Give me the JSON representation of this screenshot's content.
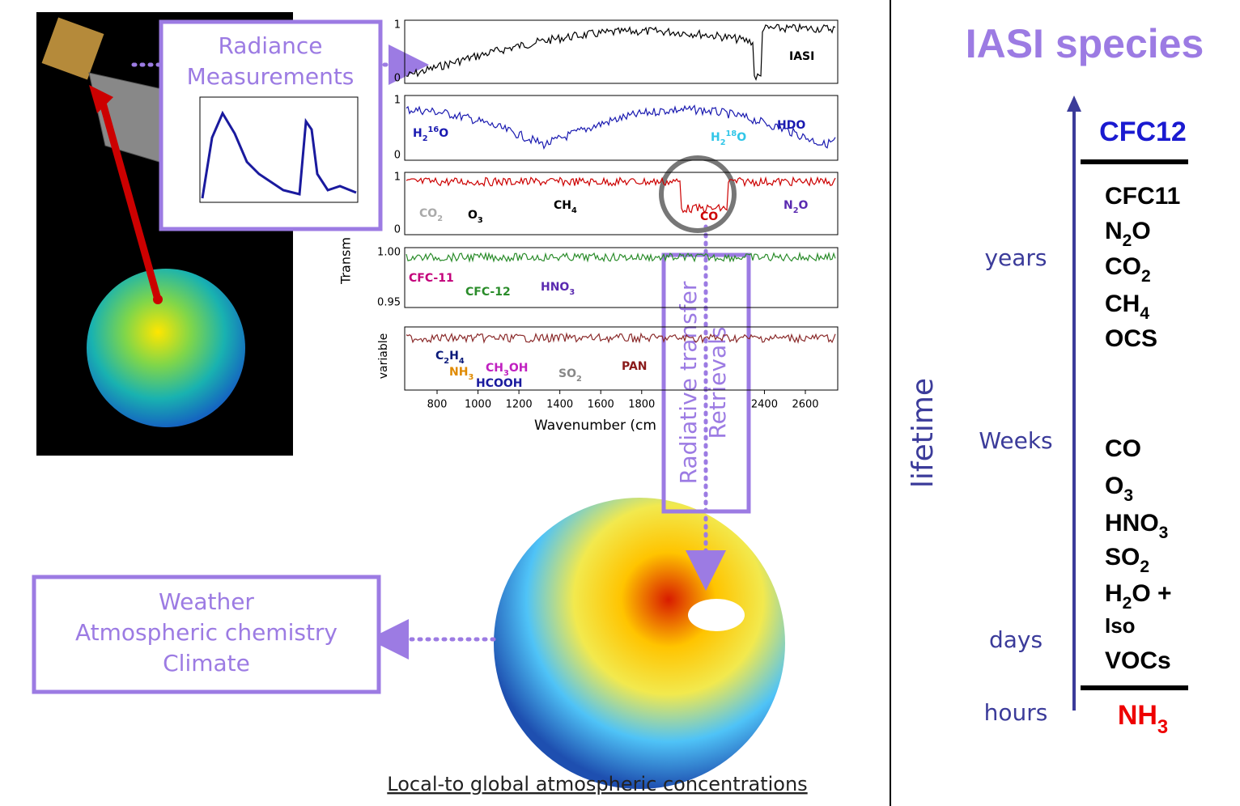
{
  "radiance_box": {
    "lines": [
      "Radiance",
      "Measurements"
    ]
  },
  "spectra": {
    "y_axis_label": "Transm",
    "variable_label": "variable",
    "x_axis_label": "Wavenumber (cm",
    "xticks": [
      800,
      1000,
      1200,
      1400,
      1600,
      1800,
      2400,
      2600
    ],
    "panels": [
      {
        "yticks": [
          "1",
          "0"
        ],
        "labels": [
          [
            {
              "text": "IASI"
            }
          ]
        ]
      },
      {
        "yticks": [
          "1",
          "0"
        ],
        "labels": [
          [
            {
              "text": "H"
            },
            {
              "sub": "2"
            },
            {
              "sup": "16"
            },
            {
              "text": "O"
            }
          ],
          [
            {
              "text": "H"
            },
            {
              "sub": "2"
            },
            {
              "sup": "18"
            },
            {
              "text": "O"
            }
          ],
          [
            {
              "text": "HDO"
            }
          ]
        ]
      },
      {
        "yticks": [
          "1",
          "0"
        ],
        "labels": [
          [
            {
              "text": "CO"
            },
            {
              "sub": "2"
            }
          ],
          [
            {
              "text": "O"
            },
            {
              "sub": "3"
            }
          ],
          [
            {
              "text": "CH"
            },
            {
              "sub": "4"
            }
          ],
          [
            {
              "text": "CO"
            }
          ],
          [
            {
              "text": "N"
            },
            {
              "sub": "2"
            },
            {
              "text": "O"
            }
          ]
        ]
      },
      {
        "yticks": [
          "1.00",
          "0.95"
        ],
        "labels": [
          [
            {
              "text": "CFC-11"
            }
          ],
          [
            {
              "text": "CFC-12"
            }
          ],
          [
            {
              "text": "HNO"
            },
            {
              "sub": "3"
            }
          ]
        ]
      },
      {
        "yticks": [],
        "labels": [
          [
            {
              "text": "C"
            },
            {
              "sub": "2"
            },
            {
              "text": "H"
            },
            {
              "sub": "4"
            }
          ],
          [
            {
              "text": "NH"
            },
            {
              "sub": "3"
            }
          ],
          [
            {
              "text": "CH"
            },
            {
              "sub": "3"
            },
            {
              "text": "OH"
            }
          ],
          [
            {
              "text": "HCOOH"
            }
          ],
          [
            {
              "text": "SO"
            },
            {
              "sub": "2"
            }
          ],
          [
            {
              "text": "PAN"
            }
          ]
        ]
      }
    ]
  },
  "retrieval_box": {
    "lines": [
      "Radiative transfer",
      "Retrievals"
    ]
  },
  "uses_box": {
    "lines": [
      "Weather",
      "Atmospheric chemistry",
      "Climate"
    ]
  },
  "footer": "Local-to global atmospheric concentrations",
  "species_panel": {
    "title": "IASI species",
    "axis_label": "lifetime",
    "timescales": [
      "years",
      "Weeks",
      "days",
      "hours"
    ],
    "top_species": [
      {
        "text": "CFC12"
      }
    ],
    "long_lived": [
      [
        {
          "text": "CFC11"
        }
      ],
      [
        {
          "text": "N"
        },
        {
          "sub": "2"
        },
        {
          "text": "O"
        }
      ],
      [
        {
          "text": "CO"
        },
        {
          "sub": "2"
        }
      ],
      [
        {
          "text": "CH"
        },
        {
          "sub": "4"
        }
      ],
      [
        {
          "text": "OCS"
        }
      ]
    ],
    "short_lived": [
      [
        {
          "text": "CO"
        }
      ],
      [
        {
          "text": "O"
        },
        {
          "sub": "3"
        }
      ],
      [
        {
          "text": "HNO"
        },
        {
          "sub": "3"
        }
      ],
      [
        {
          "text": "SO"
        },
        {
          "sub": "2"
        }
      ],
      [
        {
          "text": "H"
        },
        {
          "sub": "2"
        },
        {
          "text": "O +"
        }
      ],
      [
        {
          "text": "Iso"
        }
      ],
      [
        {
          "text": "VOCs"
        }
      ]
    ],
    "bottom_species": [
      {
        "text": "NH"
      },
      {
        "sub": "3"
      }
    ]
  }
}
